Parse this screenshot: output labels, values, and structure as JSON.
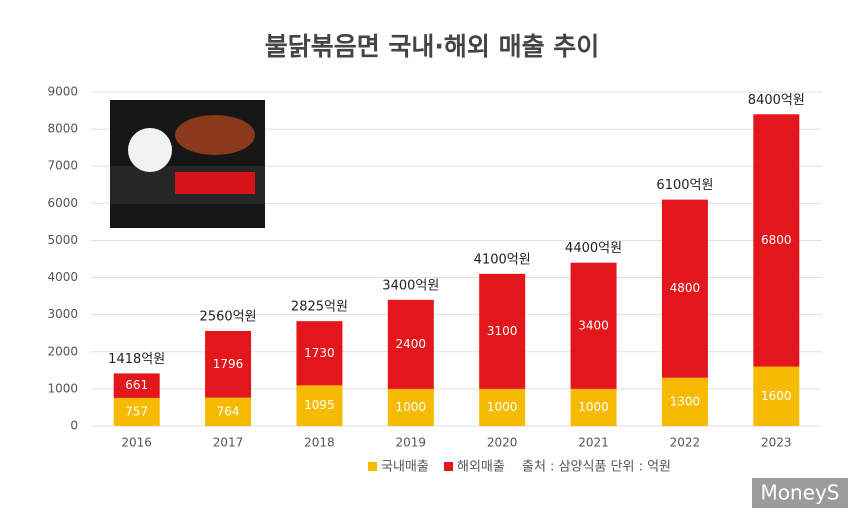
{
  "chart_data": {
    "type": "stacked_bar",
    "title": "불닭볶음면 국내·해외 매출 추이",
    "categories": [
      "2016",
      "2017",
      "2018",
      "2019",
      "2020",
      "2021",
      "2022",
      "2023"
    ],
    "series": [
      {
        "name": "국내매출",
        "color": "#f6bb00",
        "values": [
          757,
          764,
          1095,
          1000,
          1000,
          1000,
          1300,
          1600
        ]
      },
      {
        "name": "해외매출",
        "color": "#e3161c",
        "values": [
          661,
          1796,
          1730,
          2400,
          3100,
          3400,
          4800,
          6800
        ]
      }
    ],
    "total_labels": [
      "1418억원",
      "2560억원",
      "2825억원",
      "3400억원",
      "4100억원",
      "4400억원",
      "6100억원",
      "8400억원"
    ],
    "ylim": [
      0,
      9000
    ],
    "yticks": [
      0,
      1000,
      2000,
      3000,
      4000,
      5000,
      6000,
      7000,
      8000,
      9000
    ],
    "grid": true,
    "note": "출처 : 삼양식품  단위 : 억원",
    "watermark": "MoneyS"
  }
}
